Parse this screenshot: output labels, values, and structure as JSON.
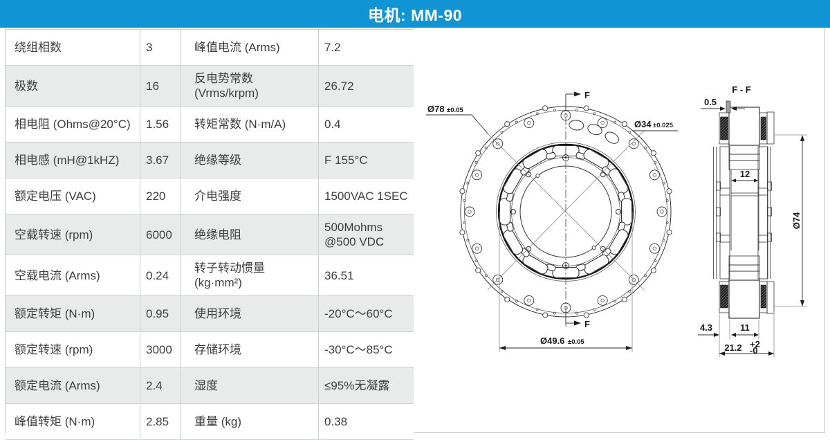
{
  "header": {
    "title": "电机: MM-90",
    "accent_color": "#1094d3"
  },
  "spec": {
    "rows": [
      {
        "l1": "绕组相数",
        "v1": "3",
        "l2": "峰值电流 (Arms)",
        "v2": "7.2"
      },
      {
        "l1": "极数",
        "v1": "16",
        "l2": "反电势常数\n(Vrms/krpm)",
        "v2": "26.72"
      },
      {
        "l1": "相电阻 (Ohms@20°C)",
        "v1": "1.56",
        "l2": "转矩常数 (N·m/A)",
        "v2": "0.4"
      },
      {
        "l1": "相电感 (mH@1kHZ)",
        "v1": "3.67",
        "l2": "绝缘等级",
        "v2": "F 155°C"
      },
      {
        "l1": "额定电压 (VAC)",
        "v1": "220",
        "l2": "介电强度",
        "v2": "1500VAC 1SEC"
      },
      {
        "l1": "空载转速 (rpm)",
        "v1": "6000",
        "l2": "绝缘电阻",
        "v2": "500Mohms\n@500 VDC"
      },
      {
        "l1": "空载电流 (Arms)",
        "v1": "0.24",
        "l2": "转子转动惯量\n(kg·mm²)",
        "v2": "36.51"
      },
      {
        "l1": "额定转矩 (N·m)",
        "v1": "0.95",
        "l2": "使用环境",
        "v2": "-20°C～60°C"
      },
      {
        "l1": "额定转速 (rpm)",
        "v1": "3000",
        "l2": "存储环境",
        "v2": "-30°C～85°C"
      },
      {
        "l1": "额定电流 (Arms)",
        "v1": "2.4",
        "l2": "湿度",
        "v2": "≤95%无凝露"
      },
      {
        "l1": "峰值转矩 (N·m)",
        "v1": "2.85",
        "l2": "重量 (kg)",
        "v2": "0.38"
      }
    ]
  },
  "drawing": {
    "front": {
      "dia_outer": "Ø78",
      "dia_outer_tol": "±0.05",
      "dia_bore": "Ø34",
      "dia_bore_tol": "±0.025",
      "dia_pitch": "Ø49.6",
      "dia_pitch_tol": "±0.05",
      "section_marker": "F"
    },
    "section": {
      "title": "F - F",
      "plate": "0.5",
      "slot_w": "12",
      "dia_out": "Ø74",
      "flange_w": "4.3",
      "hub_w": "11",
      "total_w": "21.2",
      "tol_up": "+2",
      "tol_dn": "-0"
    }
  }
}
